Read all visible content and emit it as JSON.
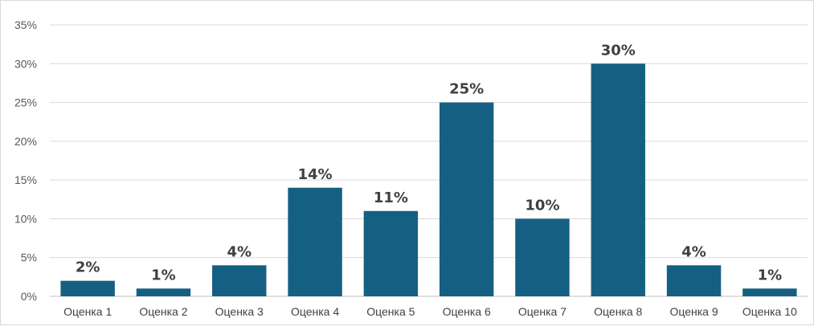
{
  "chart_data": {
    "type": "bar",
    "title": "",
    "xlabel": "",
    "ylabel": "",
    "categories": [
      "Оценка 1",
      "Оценка 2",
      "Оценка 3",
      "Оценка 4",
      "Оценка 5",
      "Оценка 6",
      "Оценка 7",
      "Оценка 8",
      "Оценка 9",
      "Оценка 10"
    ],
    "values": [
      2,
      1,
      4,
      14,
      11,
      25,
      10,
      30,
      4,
      1
    ],
    "data_labels": [
      "2%",
      "1%",
      "4%",
      "14%",
      "11%",
      "25%",
      "10%",
      "30%",
      "4%",
      "1%"
    ],
    "y_ticks": [
      0,
      5,
      10,
      15,
      20,
      25,
      30,
      35
    ],
    "y_tick_labels": [
      "0%",
      "5%",
      "10%",
      "15%",
      "20%",
      "25%",
      "30%",
      "35%"
    ],
    "ylim": [
      0,
      35
    ],
    "grid": true,
    "legend": "none",
    "colors": {
      "bar": "#156082",
      "grid": "#d9d9d9",
      "axis": "#bfbfbf",
      "text": "#404040"
    }
  }
}
